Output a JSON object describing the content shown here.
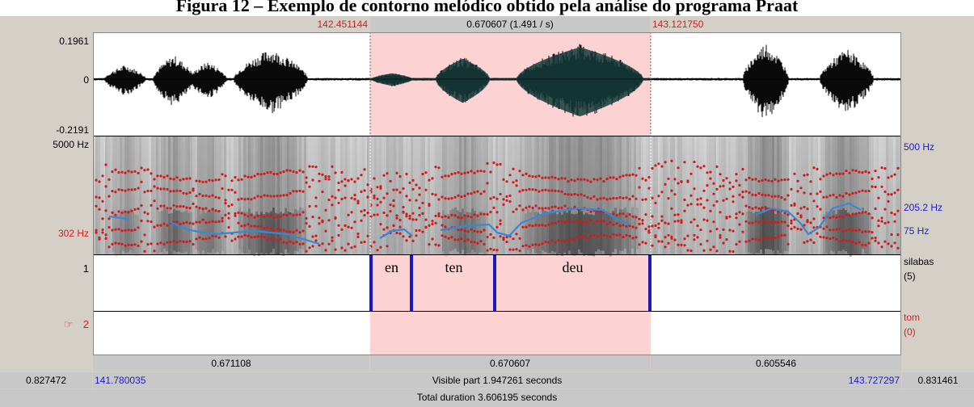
{
  "caption": "Figura 12 – Exemplo de contorno melódico obtido pela análise do programa Praat",
  "top_bar": {
    "sel_start": "142.451144",
    "sel_duration": "0.670607 (1.491 / s)",
    "sel_end": "143.121750"
  },
  "waveform": {
    "y_max": "0.1961",
    "y_zero": "0",
    "y_min": "-0.2191"
  },
  "spectrogram": {
    "freq_top_left": "5000 Hz",
    "freq_bottom_left": "302 Hz",
    "pitch_top_right": "500 Hz",
    "pitch_mid_right": "205.2 Hz",
    "pitch_bottom_right": "75 Hz"
  },
  "tier1": {
    "number": "1",
    "name": "silabas",
    "count": "(5)",
    "intervals": [
      "en",
      "ten",
      "deu"
    ]
  },
  "tier2": {
    "number": "2",
    "name": "tom",
    "count": "(0)"
  },
  "bottom_bar": {
    "left_dur": "0.671108",
    "sel_dur": "0.670607",
    "right_dur": "0.605546",
    "left_outer": "0.827472",
    "visible_start": "141.780035",
    "visible_part": "Visible part 1.947261 seconds",
    "visible_end": "143.727297",
    "right_outer": "0.831461",
    "total_duration": "Total duration 3.606195 seconds"
  },
  "colors": {
    "selection": "#fcd2d2",
    "pitch": "#3a86d8",
    "formant": "#d01c1c",
    "boundary": "#1818c8",
    "waveform_dark": "#0a0a0a",
    "waveform_teal": "#163c3c"
  }
}
